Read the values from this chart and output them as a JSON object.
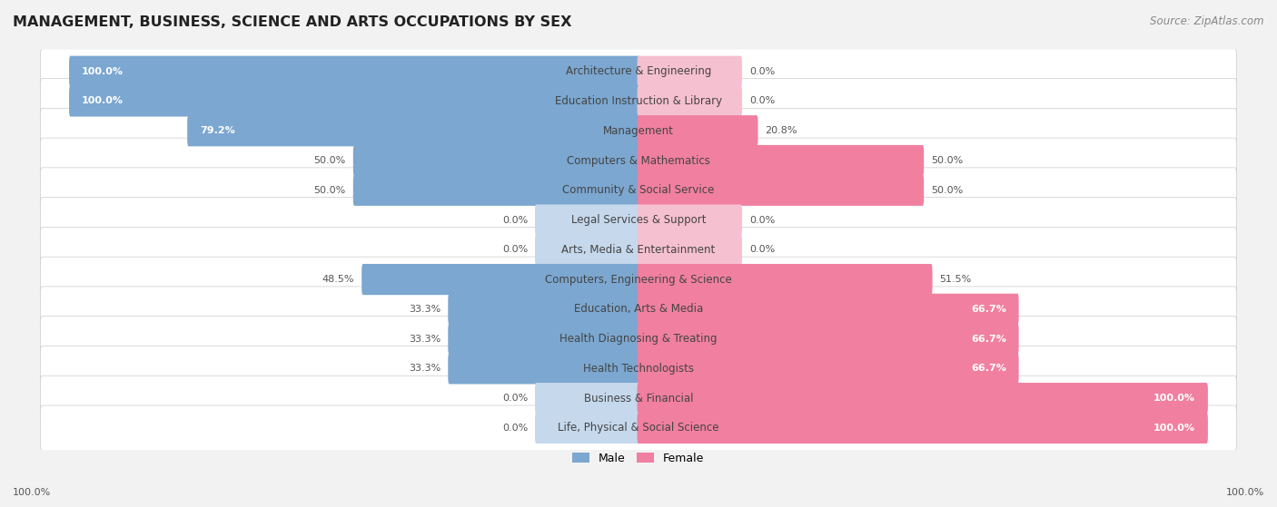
{
  "title": "MANAGEMENT, BUSINESS, SCIENCE AND ARTS OCCUPATIONS BY SEX",
  "source": "Source: ZipAtlas.com",
  "categories": [
    "Architecture & Engineering",
    "Education Instruction & Library",
    "Management",
    "Computers & Mathematics",
    "Community & Social Service",
    "Legal Services & Support",
    "Arts, Media & Entertainment",
    "Computers, Engineering & Science",
    "Education, Arts & Media",
    "Health Diagnosing & Treating",
    "Health Technologists",
    "Business & Financial",
    "Life, Physical & Social Science"
  ],
  "male": [
    100.0,
    100.0,
    79.2,
    50.0,
    50.0,
    0.0,
    0.0,
    48.5,
    33.3,
    33.3,
    33.3,
    0.0,
    0.0
  ],
  "female": [
    0.0,
    0.0,
    20.8,
    50.0,
    50.0,
    0.0,
    0.0,
    51.5,
    66.7,
    66.7,
    66.7,
    100.0,
    100.0
  ],
  "male_color": "#7ba7d0",
  "female_color": "#f07fa0",
  "male_color_zero": "#c5d8ec",
  "female_color_zero": "#f5c0cf",
  "bg_color": "#f2f2f2",
  "row_bg_color": "#ffffff",
  "legend_male_color": "#7ba7d0",
  "legend_female_color": "#f07fa0"
}
